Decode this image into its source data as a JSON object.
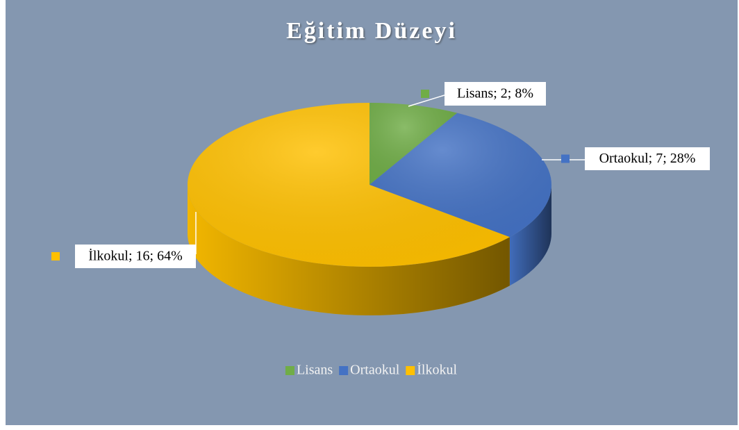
{
  "chart_data": {
    "type": "pie",
    "title": "Eğitim Düzeyi",
    "categories": [
      "Lisans",
      "Ortaokul",
      "İlkokul"
    ],
    "values": [
      2,
      7,
      16
    ],
    "value_labels": [
      "Lisans; 2; 8%",
      "Ortaokul; 7; 28%",
      "İlkokul; 16; 64%"
    ],
    "colors": [
      "#70ad47",
      "#4472c4",
      "#ffc000"
    ],
    "legend": "bottom"
  }
}
